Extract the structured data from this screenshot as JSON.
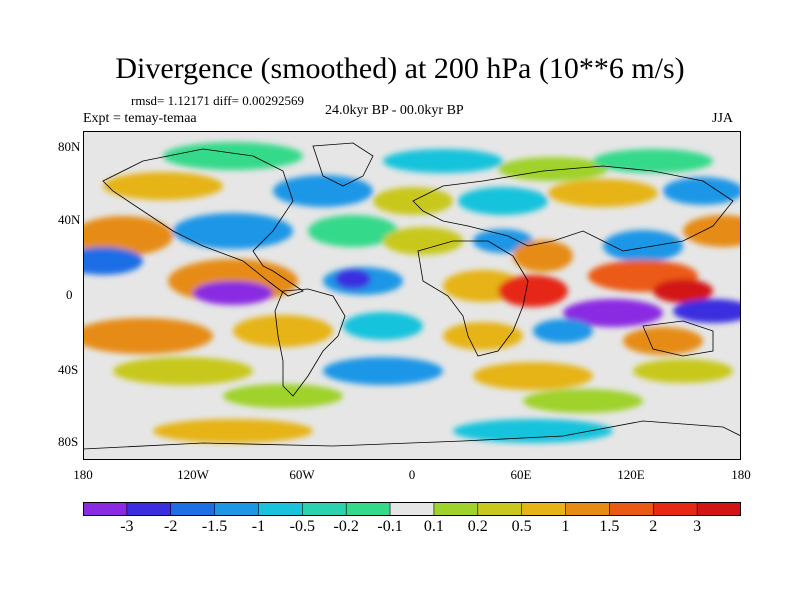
{
  "title": "Divergence (smoothed) at 200 hPa (10**6 m/s)",
  "stats": "rmsd= 1.12171 diff= 0.00292569",
  "experiment": "Expt = temay-temaa",
  "period": "24.0kyr BP - 00.0kyr BP",
  "season": "JJA",
  "lat_ticks": [
    "80N",
    "40N",
    "0",
    "40S",
    "80S"
  ],
  "lon_ticks": [
    "180",
    "120W",
    "60W",
    "0",
    "60E",
    "120E",
    "180"
  ],
  "colorbar": {
    "labels": [
      "-3",
      "-2",
      "-1.5",
      "-1",
      "-0.5",
      "-0.2",
      "-0.1",
      "0.1",
      "0.2",
      "0.5",
      "1",
      "1.5",
      "2",
      "3"
    ],
    "colors": [
      "#8a2be2",
      "#3a2ee0",
      "#1e6ee6",
      "#1e96e6",
      "#19c3dc",
      "#2bd2b0",
      "#35d98a",
      "#e6e6e6",
      "#9fd22a",
      "#c8c81e",
      "#e6b414",
      "#e68c14",
      "#eb5a14",
      "#e62814",
      "#d21414"
    ]
  }
}
